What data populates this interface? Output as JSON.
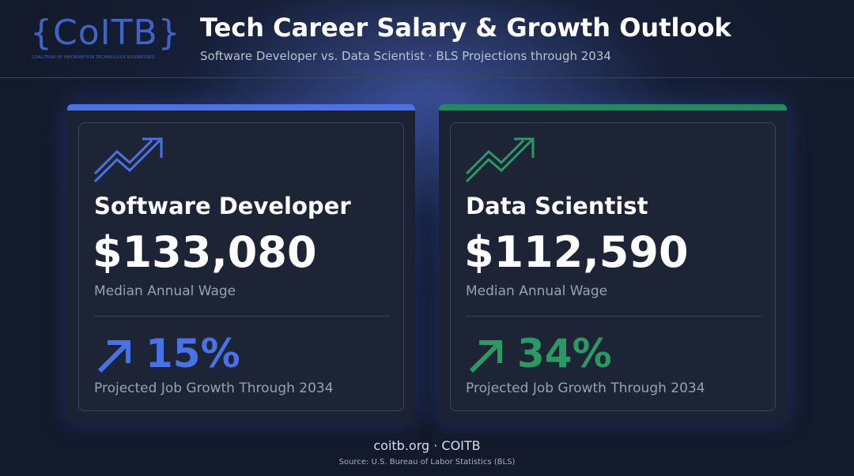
{
  "header": {
    "logo": "{CoITB}",
    "logo_tagline": "COALITION OF INFORMATION TECHNOLOGY BUSINESSES",
    "title": "Tech Career Salary & Growth Outlook",
    "subtitle": "Software Developer vs. Data Scientist · BLS Projections through 2034"
  },
  "cards": [
    {
      "title": "Software Developer",
      "wage": "$133,080",
      "wage_label": "Median Annual Wage",
      "growth": "15%",
      "growth_label": "Projected Job Growth Through 2034"
    },
    {
      "title": "Data Scientist",
      "wage": "$112,590",
      "wage_label": "Median Annual Wage",
      "growth": "34%",
      "growth_label": "Projected Job Growth Through 2034"
    }
  ],
  "footer": {
    "site": "coitb.org · COITB",
    "source": "Source: U.S. Bureau of Labor Statistics (BLS)"
  }
}
